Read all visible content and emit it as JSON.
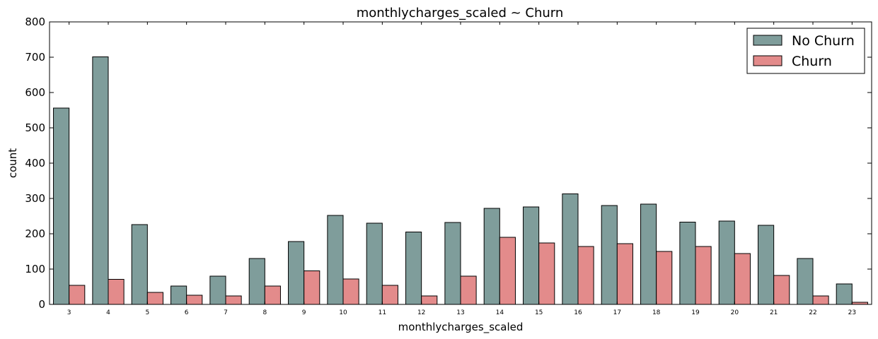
{
  "chart_data": {
    "type": "bar",
    "title": "monthlycharges_scaled ~ Churn",
    "xlabel": "monthlycharges_scaled",
    "ylabel": "count",
    "ylim": [
      0,
      800
    ],
    "yticks": [
      "0",
      "100",
      "200",
      "300",
      "400",
      "500",
      "600",
      "700",
      "800"
    ],
    "categories": [
      "3",
      "4",
      "5",
      "6",
      "7",
      "8",
      "9",
      "10",
      "11",
      "12",
      "13",
      "14",
      "15",
      "16",
      "17",
      "18",
      "19",
      "20",
      "21",
      "22",
      "23"
    ],
    "series": [
      {
        "name": "No Churn",
        "color": "#7f9d9b",
        "values": [
          556,
          701,
          226,
          52,
          80,
          130,
          178,
          252,
          230,
          205,
          232,
          272,
          276,
          313,
          280,
          284,
          233,
          236,
          224,
          130,
          58
        ]
      },
      {
        "name": "Churn",
        "color": "#e38b8b",
        "values": [
          54,
          71,
          34,
          26,
          24,
          52,
          95,
          72,
          54,
          24,
          80,
          190,
          174,
          164,
          172,
          150,
          164,
          144,
          82,
          24,
          6
        ]
      }
    ],
    "legend_position": "top-right",
    "grid": false
  }
}
